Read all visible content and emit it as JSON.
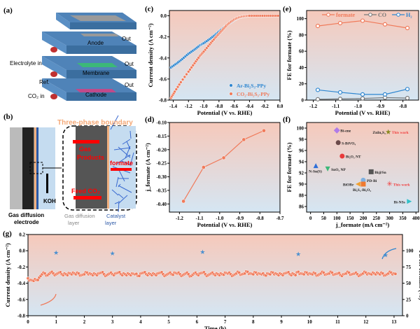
{
  "panel_labels": {
    "a": "(a)",
    "b": "(b)",
    "c": "(c)",
    "d": "(d)",
    "e": "(e)",
    "f": "(f)",
    "g": "(g)"
  },
  "schematic_a": {
    "anode": "Anode",
    "membrane": "Membrane",
    "cathode": "Cathode",
    "out": "Out",
    "electrolyte_in": "Electrolyte in",
    "ref": "Ref.",
    "co2_in": "CO₂ in"
  },
  "schematic_b": {
    "boundary": "Three-phase boundary",
    "gas_products": "Gas",
    "gas_products2": "Products",
    "formate": "formate",
    "feed": "Feed CO₂",
    "koh": "KOH",
    "gde1": "Gas diffusion",
    "gde2": "electrode",
    "gdl1": "Gas diffusion",
    "gdl2": "layer",
    "cat1": "Catalyst",
    "cat2": "layer"
  },
  "colors": {
    "orange": "#f07a5a",
    "blue": "#2e86d0",
    "gray": "#777777",
    "bg_top": "#f6c9bb",
    "bg_bottom": "#d5e6f3"
  },
  "chart_data": [
    {
      "id": "c",
      "type": "scatter",
      "xlabel": "Potential (V vs. RHE)",
      "ylabel": "Current density (A cm⁻²)",
      "xlim": [
        -1.45,
        0
      ],
      "ylim": [
        -0.8,
        0.05
      ],
      "xticks": [
        -1.4,
        -1.2,
        -1.0,
        -0.8,
        -0.6,
        -0.4,
        -0.2,
        0.0
      ],
      "yticks": [
        0.0,
        -0.2,
        -0.4,
        -0.6,
        -0.8
      ],
      "legend": "bottom-right",
      "series": [
        {
          "name": "Ar-Bi₂S₃-PPy",
          "color": "#2e86d0",
          "x": [
            -1.43,
            -1.35,
            -1.28,
            -1.2,
            -1.12,
            -1.05,
            -1.0,
            -0.92,
            -0.85,
            -0.8,
            -0.75,
            -0.7,
            -0.65,
            -0.6,
            -0.55,
            -0.5,
            -0.45,
            -0.4,
            -0.3,
            -0.2,
            -0.1,
            0
          ],
          "y": [
            -0.49,
            -0.45,
            -0.41,
            -0.36,
            -0.32,
            -0.28,
            -0.26,
            -0.22,
            -0.18,
            -0.15,
            -0.12,
            -0.09,
            -0.065,
            -0.04,
            -0.02,
            -0.01,
            -0.004,
            0,
            0,
            0,
            0,
            0
          ]
        },
        {
          "name": "CO₂-Bi₂S₃-PPy",
          "color": "#f07a5a",
          "x": [
            -1.43,
            -1.38,
            -1.3,
            -1.2,
            -1.12,
            -1.05,
            -1.0,
            -0.92,
            -0.85,
            -0.8,
            -0.75,
            -0.7,
            -0.65,
            -0.6,
            -0.55,
            -0.5,
            -0.45,
            -0.4,
            -0.3,
            -0.2,
            -0.1,
            0
          ],
          "y": [
            -0.78,
            -0.72,
            -0.63,
            -0.53,
            -0.45,
            -0.38,
            -0.34,
            -0.27,
            -0.21,
            -0.17,
            -0.13,
            -0.09,
            -0.06,
            -0.035,
            -0.018,
            -0.008,
            -0.003,
            0,
            0,
            0,
            0,
            0
          ]
        }
      ]
    },
    {
      "id": "e",
      "type": "line",
      "xlabel": "Potential (V vs. RHE)",
      "ylabel": "FE for formate (%)",
      "xlim": [
        -1.23,
        -0.73
      ],
      "ylim": [
        0,
        110
      ],
      "xticks": [
        -1.2,
        -1.1,
        -1.0,
        -0.9,
        -0.8
      ],
      "yticks": [
        0,
        20,
        40,
        60,
        80,
        100
      ],
      "legend": "top",
      "x": [
        -1.18,
        -1.08,
        -0.98,
        -0.88,
        -0.78
      ],
      "series": [
        {
          "name": "formate",
          "color": "#f07a5a",
          "values": [
            91,
            94.5,
            97.5,
            93,
            88.5
          ]
        },
        {
          "name": "CO",
          "color": "#777777",
          "values": [
            1,
            1.5,
            2,
            3,
            2.5
          ]
        },
        {
          "name": "H₂",
          "color": "#2e86d0",
          "values": [
            12.5,
            9.5,
            7,
            7,
            13.5
          ]
        }
      ]
    },
    {
      "id": "d",
      "type": "line",
      "xlabel": "Potential (V vs. RHE)",
      "ylabel": "j_formate (A cm⁻²)",
      "xlim": [
        -1.25,
        -0.7
      ],
      "ylim": [
        -0.43,
        -0.1
      ],
      "xticks": [
        -1.2,
        -1.1,
        -1.0,
        -0.9,
        -0.8,
        -0.7
      ],
      "yticks": [
        -0.1,
        -0.15,
        -0.2,
        -0.25,
        -0.3,
        -0.35,
        -0.4
      ],
      "x": [
        -1.18,
        -1.08,
        -0.98,
        -0.88,
        -0.78
      ],
      "values": [
        -0.39,
        -0.265,
        -0.23,
        -0.163,
        -0.13
      ]
    },
    {
      "id": "f",
      "type": "scatter",
      "xlabel": "j_formate (mA cm⁻²)",
      "ylabel": "FE for formate (%)",
      "xlim": [
        -15,
        410
      ],
      "ylim": [
        85,
        101
      ],
      "xticks": [
        0,
        50,
        100,
        150,
        200,
        250,
        300,
        350,
        400
      ],
      "yticks": [
        86,
        88,
        90,
        92,
        94,
        96,
        98,
        100
      ],
      "points": [
        {
          "label": "Bi-ene",
          "x": 100,
          "y": 99.6,
          "marker": "diamond",
          "color": "#b07ce8"
        },
        {
          "label": "S-BiVO₄",
          "x": 105,
          "y": 97.4,
          "marker": "circle",
          "color": "#6b4a4a"
        },
        {
          "label": "Bi₂O₃ NT",
          "x": 120,
          "y": 95,
          "marker": "circle",
          "color": "#e83a3a"
        },
        {
          "label": "N-Sn(S)",
          "x": 20,
          "y": 93.3,
          "marker": "triangle-up",
          "color": "#2e6fd8"
        },
        {
          "label": "SnO₂ NP",
          "x": 65,
          "y": 92.7,
          "marker": "triangle-down",
          "color": "#3cb878"
        },
        {
          "label": "Bi@Sn",
          "x": 230,
          "y": 92.2,
          "marker": "square",
          "color": "#555555"
        },
        {
          "label": "PD-Bi",
          "x": 200,
          "y": 90.7,
          "marker": "circle",
          "color": "#7fb0e0"
        },
        {
          "label": "BiOBr",
          "x": 180,
          "y": 90,
          "marker": "triangle-left",
          "color": "#f0a030"
        },
        {
          "label": "Bi₂S₃-Bi₂O₃",
          "x": 200,
          "y": 90,
          "marker": "square",
          "color": "#f07a30"
        },
        {
          "label": "This work",
          "x": 300,
          "y": 90,
          "marker": "asterisk",
          "color": "#f04040"
        },
        {
          "label": "ZnIn₂S₄",
          "label2": "This work",
          "x": 295,
          "y": 99.3,
          "marker": "star",
          "color": "#8a8a20"
        },
        {
          "label": "Bi-NSs",
          "x": 375,
          "y": 86.9,
          "marker": "triangle-right",
          "color": "#30c0c8"
        }
      ]
    },
    {
      "id": "g",
      "type": "scatter",
      "xlabel": "Time (h)",
      "ylabel": "Current density (A cm⁻²)",
      "y2label": "FE for formate (%)",
      "xlim": [
        0,
        13.3
      ],
      "ylim": [
        -0.8,
        0.2
      ],
      "y2lim": [
        0,
        125
      ],
      "xticks": [
        0,
        1,
        2,
        3,
        4,
        5,
        6,
        7,
        8,
        9,
        10,
        11,
        12,
        13
      ],
      "yticks": [
        0.2,
        0.0,
        -0.2,
        -0.4,
        -0.6,
        -0.8
      ],
      "y2ticks": [
        0,
        25,
        50,
        75,
        100
      ],
      "current": {
        "t_step": 0.1,
        "values": [
          -0.34,
          -0.36,
          -0.37,
          -0.36,
          -0.33,
          -0.29,
          -0.28,
          -0.3,
          -0.27,
          -0.28,
          -0.29,
          -0.27,
          -0.29,
          -0.28,
          -0.3,
          -0.28,
          -0.27,
          -0.29,
          -0.28,
          -0.3,
          -0.29,
          -0.27,
          -0.28,
          -0.3,
          -0.29,
          -0.28,
          -0.27,
          -0.29,
          -0.3,
          -0.28,
          -0.29,
          -0.28,
          -0.27,
          -0.29,
          -0.28,
          -0.3,
          -0.29,
          -0.28,
          -0.29,
          -0.31,
          -0.28,
          -0.27,
          -0.29,
          -0.28,
          -0.3,
          -0.29,
          -0.28,
          -0.27,
          -0.29,
          -0.3,
          -0.28,
          -0.29,
          -0.27,
          -0.28,
          -0.29,
          -0.3,
          -0.28,
          -0.29,
          -0.31,
          -0.28,
          -0.29,
          -0.28,
          -0.27,
          -0.29,
          -0.3,
          -0.28,
          -0.29,
          -0.28,
          -0.3,
          -0.29,
          -0.27,
          -0.28,
          -0.29,
          -0.3,
          -0.28,
          -0.27,
          -0.29,
          -0.28,
          -0.26,
          -0.28,
          -0.29,
          -0.27,
          -0.28,
          -0.29,
          -0.3,
          -0.28,
          -0.29,
          -0.27,
          -0.28,
          -0.3,
          -0.29,
          -0.28,
          -0.27,
          -0.29,
          -0.28,
          -0.3,
          -0.26,
          -0.28,
          -0.29,
          -0.27,
          -0.28,
          -0.29,
          -0.28,
          -0.3,
          -0.28,
          -0.27,
          -0.29,
          -0.28,
          -0.27,
          -0.29,
          -0.28,
          -0.3,
          -0.29,
          -0.28,
          -0.27,
          -0.29,
          -0.28,
          -0.29,
          -0.3,
          -0.28,
          -0.27,
          -0.28,
          -0.29,
          -0.28,
          -0.27,
          -0.29,
          -0.28,
          -0.3,
          -0.28,
          -0.27,
          -0.28,
          -0.29,
          -0.28
        ]
      },
      "fe": {
        "t": [
          1,
          3,
          6.2,
          9.6,
          12.7
        ],
        "values": [
          97,
          96,
          98,
          95,
          93
        ]
      }
    }
  ]
}
